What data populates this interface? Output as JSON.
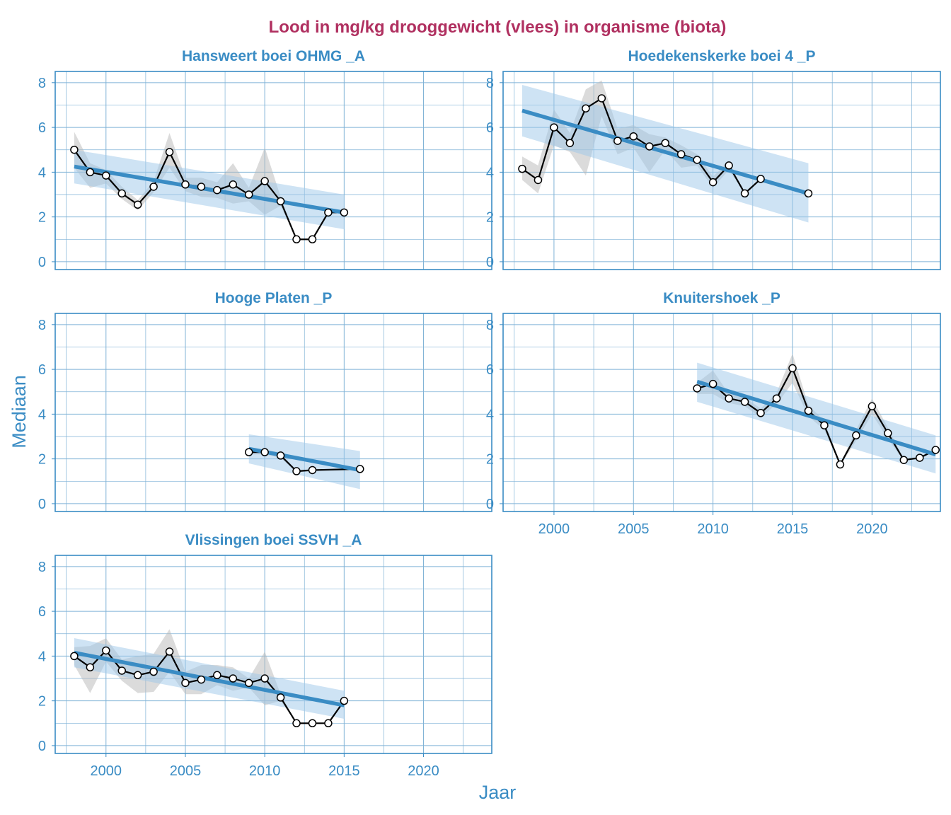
{
  "chart_data": {
    "type": "line",
    "title": "Lood in mg/kg drooggewicht (vlees) in organisme (biota)",
    "xlabel": "Jaar",
    "ylabel": "Mediaan",
    "xlim": [
      1996.8,
      2024.3
    ],
    "ylim": [
      -0.35,
      8.5
    ],
    "x_ticks": [
      2000,
      2005,
      2010,
      2015,
      2020
    ],
    "x_tick_labels": [
      "2000",
      "2005",
      "2010",
      "2015",
      "2020"
    ],
    "y_ticks": [
      0,
      2,
      4,
      6,
      8
    ],
    "y_tick_labels": [
      "0",
      "2",
      "4",
      "6",
      "8"
    ],
    "grid": true,
    "colors": {
      "title": "#b03060",
      "accent": "#3a8cc4",
      "grid": "#7fb2d6",
      "line": "#000000",
      "band_grey": "#b8b8b8",
      "band_blue": "#9ec8ea"
    },
    "panels": [
      {
        "name": "Hansweert boei OHMG _A",
        "x": [
          1998,
          1999,
          2000,
          2001,
          2002,
          2003,
          2004,
          2005,
          2006,
          2007,
          2008,
          2009,
          2010,
          2011,
          2012,
          2013,
          2014,
          2015
        ],
        "y": [
          5.0,
          4.0,
          3.85,
          3.05,
          2.55,
          3.35,
          4.9,
          3.45,
          3.35,
          3.2,
          3.45,
          3.0,
          3.6,
          2.7,
          1.0,
          1.0,
          2.2,
          2.2
        ],
        "band_lo": [
          4.2,
          3.3,
          3.5,
          2.8,
          2.3,
          3.1,
          4.2,
          3.15,
          2.9,
          2.85,
          2.6,
          2.7,
          2.1,
          2.5,
          1.0,
          1.0,
          2.2,
          2.2
        ],
        "band_hi": [
          5.8,
          4.4,
          4.1,
          3.35,
          2.75,
          3.6,
          5.75,
          3.75,
          3.75,
          3.55,
          4.4,
          3.3,
          5.1,
          2.9,
          1.0,
          1.0,
          2.2,
          2.2
        ],
        "trend": {
          "x": [
            1998,
            2015
          ],
          "y": [
            4.25,
            2.2
          ],
          "ci_lo": [
            3.5,
            1.45
          ],
          "ci_hi": [
            5.0,
            3.0
          ]
        }
      },
      {
        "name": "Hoedekenskerke boei 4 _P",
        "x": [
          1998,
          1999,
          2000,
          2001,
          2002,
          2003,
          2004,
          2005,
          2006,
          2007,
          2008,
          2009,
          2010,
          2011,
          2012,
          2013,
          2016
        ],
        "y": [
          4.15,
          3.65,
          6.0,
          5.3,
          6.85,
          7.3,
          5.4,
          5.6,
          5.15,
          5.3,
          4.8,
          4.55,
          3.55,
          4.3,
          3.05,
          3.7,
          3.05
        ],
        "band_lo": [
          3.65,
          3.05,
          5.2,
          4.9,
          3.85,
          6.5,
          4.8,
          5.1,
          4.0,
          5.0,
          4.2,
          4.3,
          3.3,
          4.1,
          3.05,
          3.7,
          3.05
        ],
        "band_hi": [
          4.7,
          4.3,
          6.8,
          5.75,
          7.7,
          8.1,
          5.95,
          6.1,
          5.7,
          5.55,
          5.2,
          4.8,
          3.8,
          4.5,
          3.05,
          3.7,
          3.05
        ],
        "trend": {
          "x": [
            1998,
            2016
          ],
          "y": [
            6.75,
            3.05
          ],
          "ci_lo": [
            5.6,
            1.75
          ],
          "ci_hi": [
            7.9,
            4.4
          ]
        }
      },
      {
        "name": "Hooge Platen _P",
        "x": [
          2009,
          2010,
          2011,
          2012,
          2013,
          2016
        ],
        "y": [
          2.3,
          2.3,
          2.15,
          1.45,
          1.5,
          1.55
        ],
        "band_lo": [
          2.2,
          2.2,
          2.05,
          1.4,
          1.5,
          1.55
        ],
        "band_hi": [
          2.4,
          2.4,
          2.3,
          1.5,
          1.5,
          1.55
        ],
        "trend": {
          "x": [
            2009,
            2016
          ],
          "y": [
            2.45,
            1.5
          ],
          "ci_lo": [
            1.8,
            0.65
          ],
          "ci_hi": [
            3.1,
            2.35
          ]
        }
      },
      {
        "name": "Knuitershoek _P",
        "x": [
          2009,
          2010,
          2011,
          2012,
          2013,
          2014,
          2015,
          2016,
          2017,
          2018,
          2019,
          2020,
          2021,
          2022,
          2023,
          2024
        ],
        "y": [
          5.15,
          5.35,
          4.7,
          4.55,
          4.05,
          4.7,
          6.05,
          4.15,
          3.5,
          1.75,
          3.05,
          4.35,
          3.15,
          1.95,
          2.05,
          2.4
        ],
        "band_lo": [
          4.9,
          4.9,
          4.5,
          4.35,
          3.85,
          4.45,
          5.4,
          3.9,
          3.3,
          1.7,
          2.8,
          4.0,
          2.9,
          1.9,
          2.0,
          2.35
        ],
        "band_hi": [
          5.4,
          5.95,
          4.9,
          4.75,
          4.25,
          4.95,
          6.7,
          4.4,
          3.7,
          1.8,
          3.3,
          4.7,
          3.4,
          2.0,
          2.1,
          2.45
        ],
        "trend": {
          "x": [
            2009,
            2024
          ],
          "y": [
            5.45,
            2.2
          ],
          "ci_lo": [
            4.55,
            1.35
          ],
          "ci_hi": [
            6.3,
            3.05
          ]
        }
      },
      {
        "name": "Vlissingen boei SSVH _A",
        "x": [
          1998,
          1999,
          2000,
          2001,
          2002,
          2003,
          2004,
          2005,
          2006,
          2007,
          2008,
          2009,
          2010,
          2011,
          2012,
          2013,
          2014,
          2015
        ],
        "y": [
          4.0,
          3.5,
          4.25,
          3.35,
          3.15,
          3.3,
          4.2,
          2.8,
          2.95,
          3.15,
          3.0,
          2.8,
          3.0,
          2.15,
          1.0,
          1.0,
          1.0,
          2.0
        ],
        "band_lo": [
          3.6,
          2.35,
          3.75,
          2.9,
          2.35,
          2.4,
          3.3,
          2.3,
          2.3,
          2.7,
          2.45,
          2.6,
          1.8,
          2.0,
          1.0,
          1.0,
          1.0,
          2.0
        ],
        "band_hi": [
          4.4,
          4.45,
          4.8,
          3.85,
          4.0,
          4.1,
          5.2,
          3.3,
          3.6,
          3.6,
          3.5,
          3.0,
          4.2,
          2.3,
          1.0,
          1.0,
          1.0,
          2.0
        ],
        "trend": {
          "x": [
            1998,
            2015
          ],
          "y": [
            4.15,
            1.8
          ],
          "ci_lo": [
            3.5,
            1.2
          ],
          "ci_hi": [
            4.8,
            2.45
          ]
        }
      }
    ]
  }
}
